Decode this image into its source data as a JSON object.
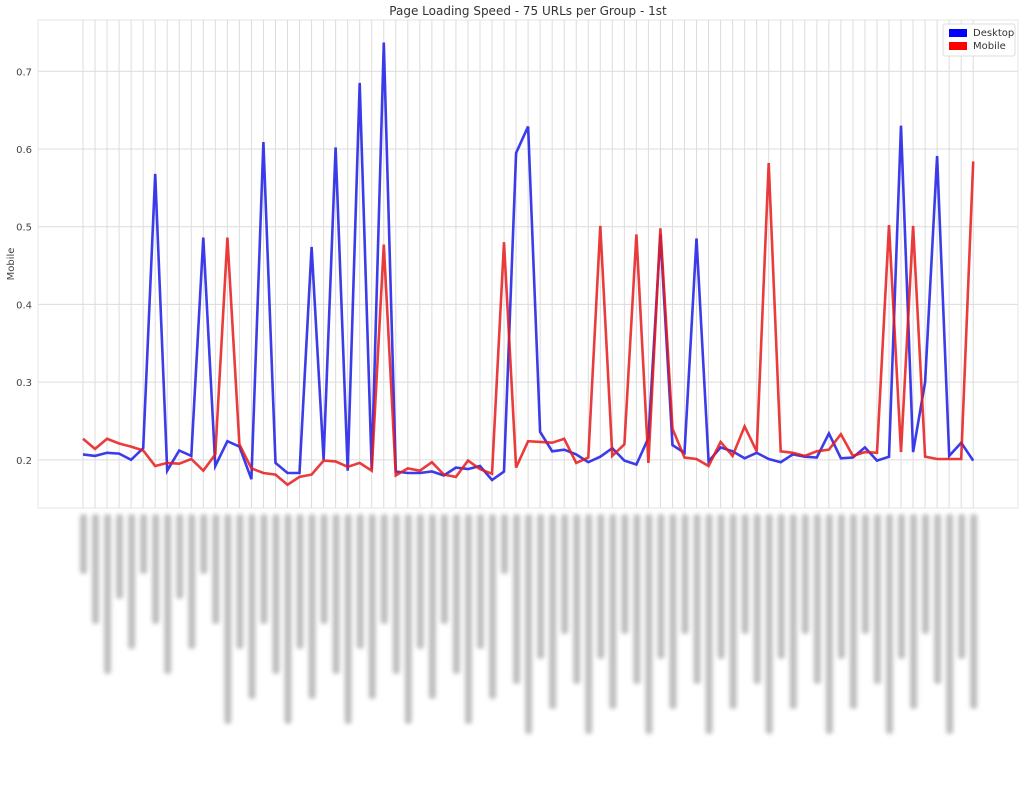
{
  "chart_data": {
    "type": "line",
    "title": "Page Loading Speed - 75 URLs per Group - 1st",
    "xlabel": "",
    "ylabel": "Mobile",
    "ylim": [
      0.138,
      0.766
    ],
    "yticks": [
      "0.2",
      "0.3",
      "0.4",
      "0.5",
      "0.6",
      "0.7"
    ],
    "ytick_values": [
      0.2,
      0.3,
      0.4,
      0.5,
      0.6,
      0.7
    ],
    "x_count": 75,
    "x_tick_labels_note": "blurred/unreadable",
    "grid": true,
    "legend_position": "top-right",
    "series": [
      {
        "name": "Desktop",
        "color": "#1a1ae6",
        "legend_color": "#0000ff",
        "values": [
          0.207,
          0.205,
          0.209,
          0.208,
          0.2,
          0.215,
          0.568,
          0.186,
          0.212,
          0.205,
          0.486,
          0.192,
          0.224,
          0.217,
          0.175,
          0.609,
          0.196,
          0.183,
          0.183,
          0.474,
          0.2,
          0.602,
          0.186,
          0.685,
          0.188,
          0.737,
          0.185,
          0.183,
          0.183,
          0.185,
          0.18,
          0.19,
          0.188,
          0.192,
          0.174,
          0.185,
          0.595,
          0.629,
          0.236,
          0.211,
          0.213,
          0.207,
          0.197,
          0.204,
          0.215,
          0.199,
          0.194,
          0.228,
          0.49,
          0.219,
          0.209,
          0.485,
          0.198,
          0.216,
          0.211,
          0.202,
          0.209,
          0.201,
          0.197,
          0.207,
          0.204,
          0.203,
          0.234,
          0.202,
          0.203,
          0.216,
          0.199,
          0.204,
          0.63,
          0.21,
          0.3,
          0.591,
          0.205,
          0.222,
          0.199
        ]
      },
      {
        "name": "Mobile",
        "color": "#e61a1a",
        "legend_color": "#ff0000",
        "values": [
          0.227,
          0.214,
          0.227,
          0.221,
          0.217,
          0.212,
          0.192,
          0.196,
          0.195,
          0.201,
          0.186,
          0.207,
          0.486,
          0.22,
          0.189,
          0.183,
          0.181,
          0.168,
          0.178,
          0.181,
          0.199,
          0.198,
          0.191,
          0.196,
          0.186,
          0.477,
          0.18,
          0.189,
          0.186,
          0.197,
          0.181,
          0.178,
          0.199,
          0.188,
          0.182,
          0.48,
          0.19,
          0.224,
          0.223,
          0.222,
          0.227,
          0.196,
          0.203,
          0.501,
          0.205,
          0.22,
          0.49,
          0.196,
          0.498,
          0.24,
          0.203,
          0.201,
          0.192,
          0.223,
          0.205,
          0.243,
          0.211,
          0.582,
          0.211,
          0.209,
          0.205,
          0.211,
          0.213,
          0.233,
          0.205,
          0.21,
          0.209,
          0.502,
          0.21,
          0.501,
          0.204,
          0.201,
          0.201,
          0.201,
          0.584
        ]
      }
    ]
  }
}
